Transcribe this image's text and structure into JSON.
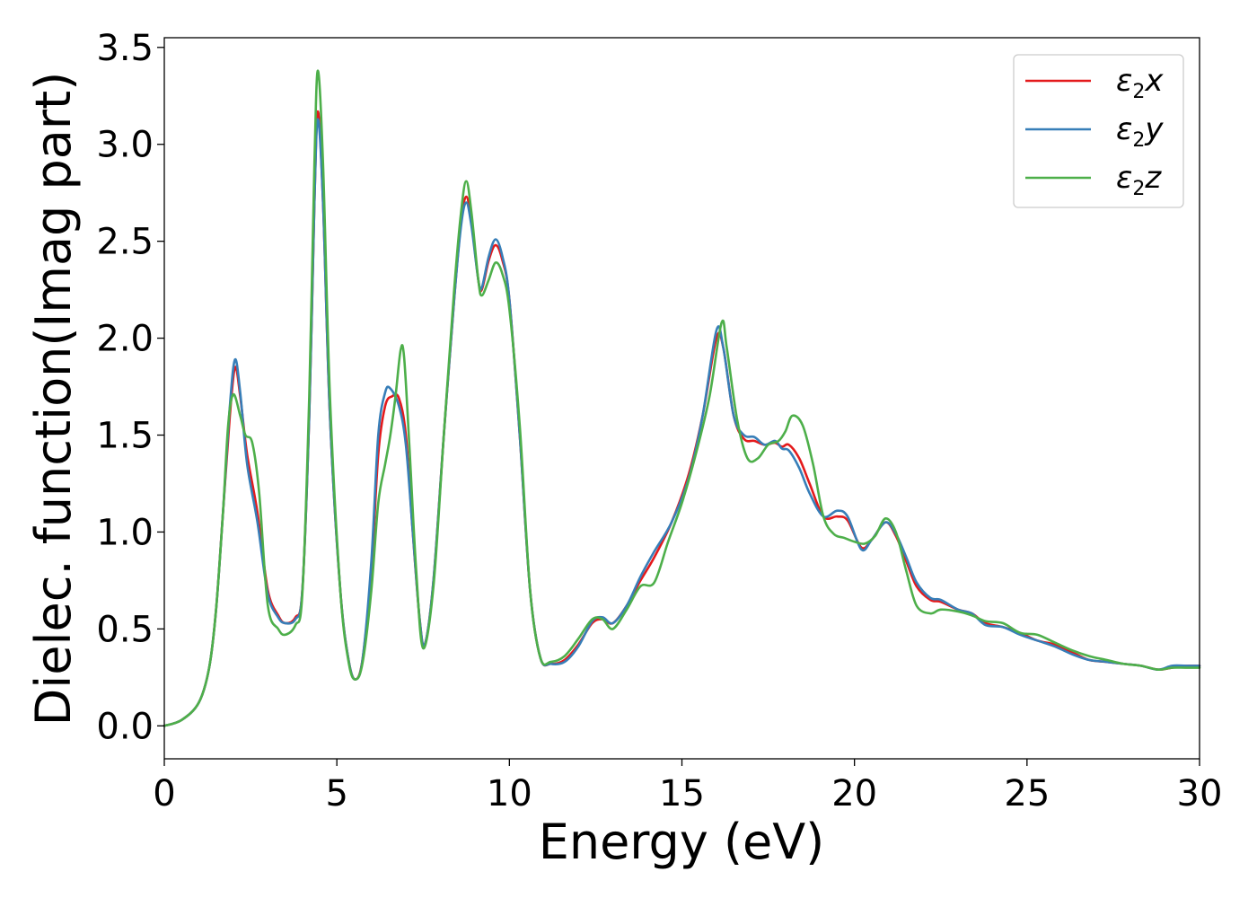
{
  "chart_data": {
    "type": "line",
    "xlabel": "Energy (eV)",
    "ylabel": "Dielec. function(Imag part)",
    "xlim": [
      0,
      30
    ],
    "ylim": [
      -0.17,
      3.55
    ],
    "xticks": [
      0,
      5,
      10,
      15,
      20,
      25,
      30
    ],
    "xtick_labels": [
      "0",
      "5",
      "10",
      "15",
      "20",
      "25",
      "30"
    ],
    "yticks": [
      0.0,
      0.5,
      1.0,
      1.5,
      2.0,
      2.5,
      3.0,
      3.5
    ],
    "ytick_labels": [
      "0.0",
      "0.5",
      "1.0",
      "1.5",
      "2.0",
      "2.5",
      "3.0",
      "3.5"
    ],
    "grid": false,
    "legend_position": "top-right",
    "series": [
      {
        "name": "ε2x",
        "legend": {
          "base": "ε",
          "sub": "2",
          "tail": "x"
        },
        "color": "#e41a1c",
        "points": [
          [
            0,
            0
          ],
          [
            0.5,
            0.03
          ],
          [
            1.0,
            0.12
          ],
          [
            1.3,
            0.3
          ],
          [
            1.5,
            0.6
          ],
          [
            1.7,
            1.1
          ],
          [
            1.9,
            1.6
          ],
          [
            2.05,
            1.85
          ],
          [
            2.2,
            1.7
          ],
          [
            2.4,
            1.4
          ],
          [
            2.7,
            1.1
          ],
          [
            3.0,
            0.7
          ],
          [
            3.3,
            0.57
          ],
          [
            3.5,
            0.53
          ],
          [
            3.8,
            0.56
          ],
          [
            4.0,
            0.7
          ],
          [
            4.2,
            1.6
          ],
          [
            4.35,
            2.7
          ],
          [
            4.45,
            3.17
          ],
          [
            4.6,
            2.7
          ],
          [
            4.8,
            1.6
          ],
          [
            5.1,
            0.7
          ],
          [
            5.35,
            0.33
          ],
          [
            5.55,
            0.24
          ],
          [
            5.75,
            0.35
          ],
          [
            6.0,
            0.8
          ],
          [
            6.2,
            1.4
          ],
          [
            6.4,
            1.65
          ],
          [
            6.6,
            1.7
          ],
          [
            6.8,
            1.69
          ],
          [
            7.0,
            1.5
          ],
          [
            7.2,
            1.0
          ],
          [
            7.4,
            0.55
          ],
          [
            7.55,
            0.42
          ],
          [
            7.8,
            0.75
          ],
          [
            8.1,
            1.5
          ],
          [
            8.4,
            2.2
          ],
          [
            8.6,
            2.6
          ],
          [
            8.75,
            2.73
          ],
          [
            8.9,
            2.6
          ],
          [
            9.1,
            2.3
          ],
          [
            9.2,
            2.25
          ],
          [
            9.4,
            2.4
          ],
          [
            9.6,
            2.48
          ],
          [
            9.8,
            2.4
          ],
          [
            10.0,
            2.2
          ],
          [
            10.3,
            1.5
          ],
          [
            10.6,
            0.7
          ],
          [
            10.9,
            0.35
          ],
          [
            11.2,
            0.32
          ],
          [
            11.6,
            0.34
          ],
          [
            12.0,
            0.42
          ],
          [
            12.4,
            0.53
          ],
          [
            12.7,
            0.55
          ],
          [
            13.0,
            0.53
          ],
          [
            13.4,
            0.62
          ],
          [
            13.8,
            0.75
          ],
          [
            14.2,
            0.87
          ],
          [
            14.7,
            1.05
          ],
          [
            15.2,
            1.3
          ],
          [
            15.6,
            1.6
          ],
          [
            16.0,
            2.0
          ],
          [
            16.2,
            1.95
          ],
          [
            16.5,
            1.6
          ],
          [
            16.8,
            1.48
          ],
          [
            17.1,
            1.47
          ],
          [
            17.4,
            1.45
          ],
          [
            17.7,
            1.46
          ],
          [
            17.9,
            1.44
          ],
          [
            18.1,
            1.45
          ],
          [
            18.4,
            1.38
          ],
          [
            18.7,
            1.25
          ],
          [
            19.1,
            1.08
          ],
          [
            19.5,
            1.08
          ],
          [
            19.8,
            1.06
          ],
          [
            20.2,
            0.92
          ],
          [
            20.5,
            0.96
          ],
          [
            20.9,
            1.05
          ],
          [
            21.2,
            0.98
          ],
          [
            21.5,
            0.85
          ],
          [
            21.8,
            0.72
          ],
          [
            22.2,
            0.65
          ],
          [
            22.5,
            0.64
          ],
          [
            23.0,
            0.6
          ],
          [
            23.4,
            0.58
          ],
          [
            23.8,
            0.53
          ],
          [
            24.3,
            0.51
          ],
          [
            24.8,
            0.48
          ],
          [
            25.3,
            0.44
          ],
          [
            25.8,
            0.42
          ],
          [
            26.3,
            0.38
          ],
          [
            26.8,
            0.34
          ],
          [
            27.3,
            0.33
          ],
          [
            27.8,
            0.32
          ],
          [
            28.3,
            0.31
          ],
          [
            28.8,
            0.29
          ],
          [
            29.2,
            0.3
          ],
          [
            29.6,
            0.31
          ],
          [
            30.0,
            0.31
          ]
        ]
      },
      {
        "name": "ε2y",
        "legend": {
          "base": "ε",
          "sub": "2",
          "tail": "y"
        },
        "color": "#377eb8",
        "points": [
          [
            0,
            0
          ],
          [
            0.5,
            0.03
          ],
          [
            1.0,
            0.12
          ],
          [
            1.3,
            0.3
          ],
          [
            1.5,
            0.6
          ],
          [
            1.7,
            1.1
          ],
          [
            1.9,
            1.65
          ],
          [
            2.05,
            1.89
          ],
          [
            2.2,
            1.72
          ],
          [
            2.4,
            1.35
          ],
          [
            2.7,
            1.05
          ],
          [
            3.0,
            0.68
          ],
          [
            3.3,
            0.56
          ],
          [
            3.5,
            0.53
          ],
          [
            3.8,
            0.55
          ],
          [
            4.0,
            0.7
          ],
          [
            4.2,
            1.6
          ],
          [
            4.35,
            2.7
          ],
          [
            4.45,
            3.13
          ],
          [
            4.6,
            2.7
          ],
          [
            4.8,
            1.6
          ],
          [
            5.1,
            0.7
          ],
          [
            5.35,
            0.33
          ],
          [
            5.55,
            0.24
          ],
          [
            5.75,
            0.35
          ],
          [
            6.0,
            0.85
          ],
          [
            6.2,
            1.5
          ],
          [
            6.4,
            1.72
          ],
          [
            6.55,
            1.74
          ],
          [
            6.8,
            1.65
          ],
          [
            7.0,
            1.45
          ],
          [
            7.2,
            1.0
          ],
          [
            7.4,
            0.55
          ],
          [
            7.55,
            0.42
          ],
          [
            7.8,
            0.75
          ],
          [
            8.1,
            1.5
          ],
          [
            8.4,
            2.2
          ],
          [
            8.6,
            2.58
          ],
          [
            8.75,
            2.7
          ],
          [
            8.9,
            2.58
          ],
          [
            9.1,
            2.3
          ],
          [
            9.2,
            2.26
          ],
          [
            9.4,
            2.42
          ],
          [
            9.6,
            2.51
          ],
          [
            9.8,
            2.42
          ],
          [
            10.0,
            2.2
          ],
          [
            10.3,
            1.5
          ],
          [
            10.6,
            0.7
          ],
          [
            10.9,
            0.35
          ],
          [
            11.2,
            0.32
          ],
          [
            11.6,
            0.33
          ],
          [
            12.0,
            0.41
          ],
          [
            12.4,
            0.54
          ],
          [
            12.7,
            0.56
          ],
          [
            13.0,
            0.53
          ],
          [
            13.4,
            0.62
          ],
          [
            13.8,
            0.77
          ],
          [
            14.2,
            0.9
          ],
          [
            14.7,
            1.05
          ],
          [
            15.2,
            1.28
          ],
          [
            15.6,
            1.6
          ],
          [
            16.0,
            2.04
          ],
          [
            16.2,
            1.95
          ],
          [
            16.5,
            1.6
          ],
          [
            16.8,
            1.5
          ],
          [
            17.1,
            1.49
          ],
          [
            17.4,
            1.45
          ],
          [
            17.7,
            1.47
          ],
          [
            17.9,
            1.43
          ],
          [
            18.1,
            1.42
          ],
          [
            18.4,
            1.33
          ],
          [
            18.7,
            1.2
          ],
          [
            19.1,
            1.08
          ],
          [
            19.5,
            1.11
          ],
          [
            19.8,
            1.08
          ],
          [
            20.2,
            0.91
          ],
          [
            20.5,
            0.96
          ],
          [
            20.9,
            1.05
          ],
          [
            21.2,
            0.99
          ],
          [
            21.5,
            0.87
          ],
          [
            21.8,
            0.74
          ],
          [
            22.2,
            0.66
          ],
          [
            22.5,
            0.65
          ],
          [
            23.0,
            0.6
          ],
          [
            23.4,
            0.58
          ],
          [
            23.8,
            0.52
          ],
          [
            24.3,
            0.51
          ],
          [
            24.8,
            0.47
          ],
          [
            25.3,
            0.44
          ],
          [
            25.8,
            0.41
          ],
          [
            26.3,
            0.37
          ],
          [
            26.8,
            0.34
          ],
          [
            27.3,
            0.33
          ],
          [
            27.8,
            0.32
          ],
          [
            28.3,
            0.31
          ],
          [
            28.8,
            0.29
          ],
          [
            29.2,
            0.31
          ],
          [
            29.6,
            0.31
          ],
          [
            30.0,
            0.31
          ]
        ]
      },
      {
        "name": "ε2z",
        "legend": {
          "base": "ε",
          "sub": "2",
          "tail": "z"
        },
        "color": "#4daf4a",
        "points": [
          [
            0,
            0
          ],
          [
            0.5,
            0.03
          ],
          [
            1.0,
            0.12
          ],
          [
            1.3,
            0.3
          ],
          [
            1.5,
            0.6
          ],
          [
            1.7,
            1.1
          ],
          [
            1.85,
            1.55
          ],
          [
            2.0,
            1.71
          ],
          [
            2.2,
            1.6
          ],
          [
            2.35,
            1.5
          ],
          [
            2.55,
            1.46
          ],
          [
            2.75,
            1.2
          ],
          [
            3.0,
            0.62
          ],
          [
            3.3,
            0.5
          ],
          [
            3.5,
            0.47
          ],
          [
            3.8,
            0.52
          ],
          [
            4.0,
            0.68
          ],
          [
            4.2,
            1.7
          ],
          [
            4.35,
            2.9
          ],
          [
            4.45,
            3.38
          ],
          [
            4.6,
            2.9
          ],
          [
            4.8,
            1.7
          ],
          [
            5.1,
            0.7
          ],
          [
            5.35,
            0.32
          ],
          [
            5.55,
            0.24
          ],
          [
            5.75,
            0.33
          ],
          [
            6.0,
            0.7
          ],
          [
            6.2,
            1.15
          ],
          [
            6.4,
            1.35
          ],
          [
            6.55,
            1.5
          ],
          [
            6.7,
            1.7
          ],
          [
            6.85,
            1.94
          ],
          [
            6.95,
            1.9
          ],
          [
            7.1,
            1.45
          ],
          [
            7.3,
            0.8
          ],
          [
            7.5,
            0.4
          ],
          [
            7.8,
            0.72
          ],
          [
            8.1,
            1.5
          ],
          [
            8.4,
            2.25
          ],
          [
            8.6,
            2.65
          ],
          [
            8.75,
            2.81
          ],
          [
            8.9,
            2.65
          ],
          [
            9.1,
            2.3
          ],
          [
            9.2,
            2.22
          ],
          [
            9.4,
            2.3
          ],
          [
            9.6,
            2.39
          ],
          [
            9.8,
            2.33
          ],
          [
            10.0,
            2.15
          ],
          [
            10.3,
            1.55
          ],
          [
            10.6,
            0.7
          ],
          [
            10.9,
            0.35
          ],
          [
            11.2,
            0.33
          ],
          [
            11.6,
            0.36
          ],
          [
            12.0,
            0.45
          ],
          [
            12.4,
            0.55
          ],
          [
            12.7,
            0.55
          ],
          [
            13.0,
            0.5
          ],
          [
            13.4,
            0.6
          ],
          [
            13.8,
            0.72
          ],
          [
            14.2,
            0.74
          ],
          [
            14.6,
            0.95
          ],
          [
            15.0,
            1.15
          ],
          [
            15.4,
            1.4
          ],
          [
            15.8,
            1.7
          ],
          [
            16.15,
            2.08
          ],
          [
            16.3,
            1.95
          ],
          [
            16.6,
            1.58
          ],
          [
            16.9,
            1.38
          ],
          [
            17.2,
            1.38
          ],
          [
            17.5,
            1.45
          ],
          [
            17.8,
            1.47
          ],
          [
            18.0,
            1.52
          ],
          [
            18.2,
            1.6
          ],
          [
            18.5,
            1.55
          ],
          [
            18.8,
            1.35
          ],
          [
            19.1,
            1.08
          ],
          [
            19.4,
            0.99
          ],
          [
            19.7,
            0.97
          ],
          [
            20.0,
            0.95
          ],
          [
            20.3,
            0.94
          ],
          [
            20.6,
            0.98
          ],
          [
            20.9,
            1.07
          ],
          [
            21.2,
            1.0
          ],
          [
            21.5,
            0.8
          ],
          [
            21.8,
            0.62
          ],
          [
            22.2,
            0.58
          ],
          [
            22.5,
            0.6
          ],
          [
            23.0,
            0.59
          ],
          [
            23.4,
            0.57
          ],
          [
            23.8,
            0.54
          ],
          [
            24.3,
            0.53
          ],
          [
            24.8,
            0.48
          ],
          [
            25.3,
            0.47
          ],
          [
            25.8,
            0.43
          ],
          [
            26.3,
            0.39
          ],
          [
            26.8,
            0.36
          ],
          [
            27.3,
            0.34
          ],
          [
            27.8,
            0.32
          ],
          [
            28.3,
            0.31
          ],
          [
            28.8,
            0.29
          ],
          [
            29.2,
            0.3
          ],
          [
            29.6,
            0.3
          ],
          [
            30.0,
            0.3
          ]
        ]
      }
    ]
  }
}
